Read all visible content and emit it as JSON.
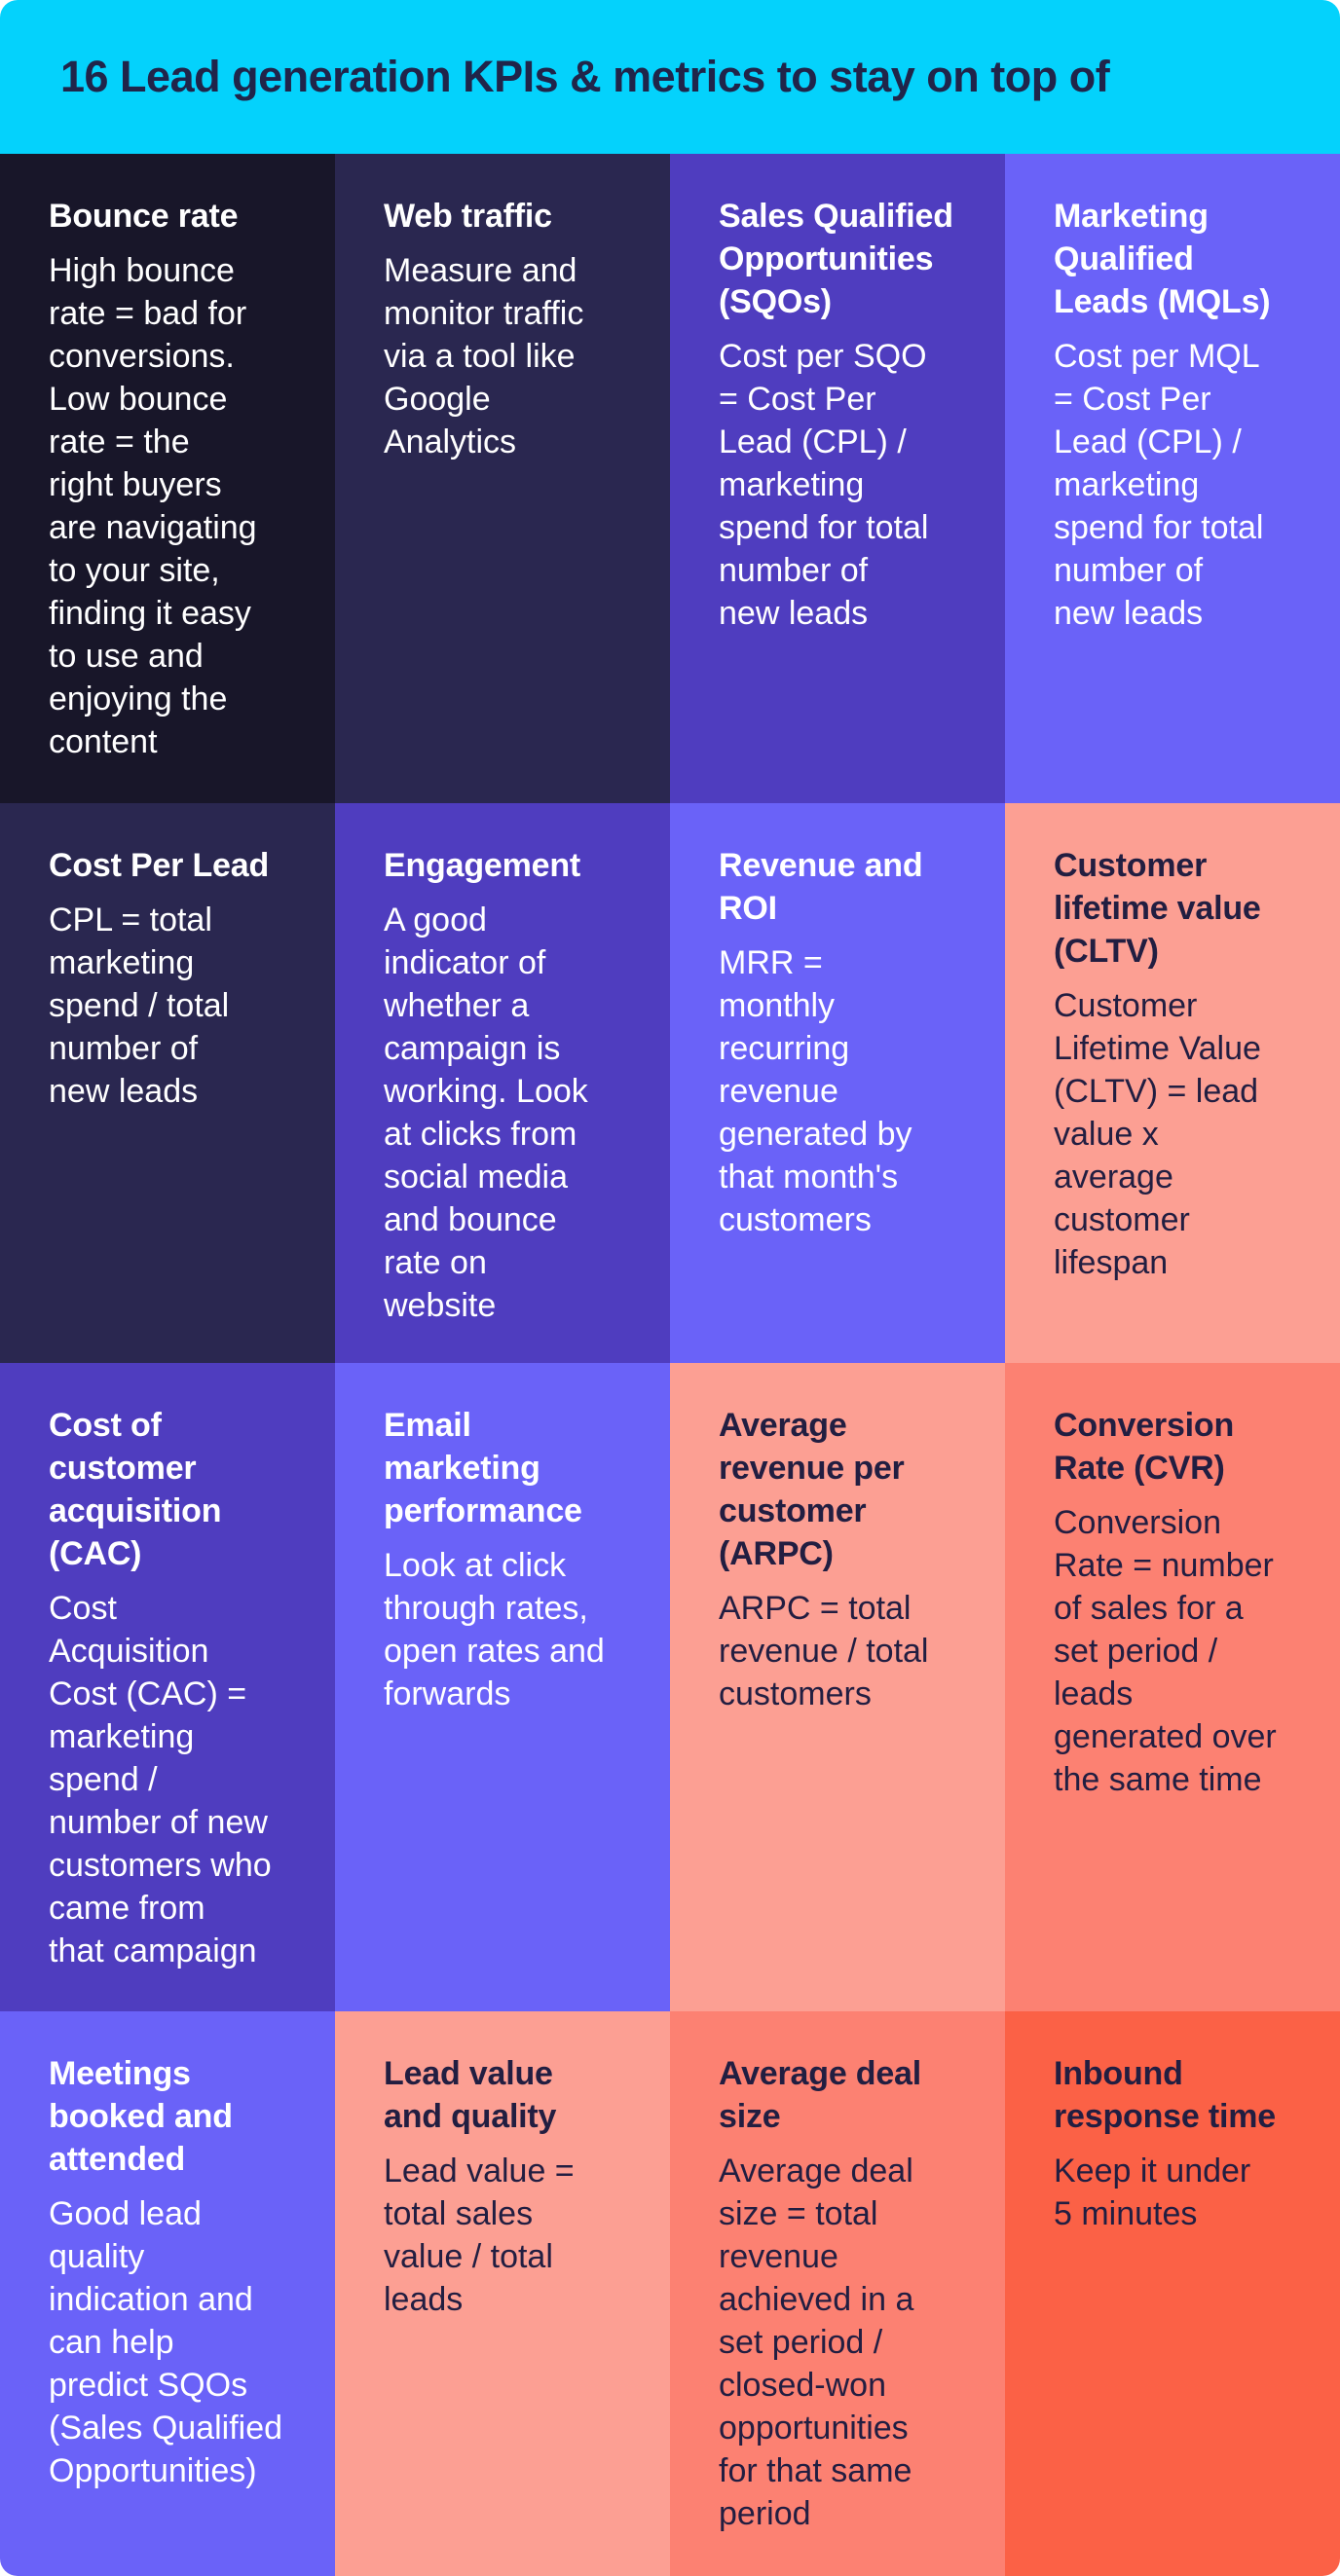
{
  "header": {
    "title": "16 Lead generation KPIs & metrics to stay on top of",
    "bg": "#04d2fc",
    "text_color": "#20254a"
  },
  "grid": {
    "cells": [
      {
        "id": "bounce-rate",
        "title": "Bounce rate",
        "body": "High bounce\nrate = bad for\nconversions.\nLow bounce\nrate =  the\nright buyers\nare navigating\nto your site,\nfinding it easy\nto use and\nenjoying the\ncontent",
        "bg": "#181629",
        "text_color": "#ffffff"
      },
      {
        "id": "web-traffic",
        "title": "Web traffic",
        "body": "Measure and\nmonitor traffic\nvia a tool like\nGoogle\nAnalytics",
        "bg": "#2a2750",
        "text_color": "#ffffff"
      },
      {
        "id": "sqos",
        "title": "Sales Qualified\nOpportunities\n(SQOs)",
        "body": "Cost per SQO\n= Cost Per\nLead (CPL) /\nmarketing\nspend for total\nnumber of\nnew leads",
        "bg": "#4f3dbf",
        "text_color": "#ffffff"
      },
      {
        "id": "mqls",
        "title": "Marketing\nQualified\nLeads (MQLs)",
        "body": "Cost per MQL\n= Cost Per\nLead (CPL) /\nmarketing\nspend for total\nnumber of\nnew leads",
        "bg": "#6a62f8",
        "text_color": "#ffffff"
      },
      {
        "id": "cost-per-lead",
        "title": "Cost Per Lead",
        "body": "CPL = total\nmarketing\nspend /  total\nnumber of\nnew leads",
        "bg": "#2a2750",
        "text_color": "#ffffff"
      },
      {
        "id": "engagement",
        "title": "Engagement",
        "body": "A good\nindicator of\nwhether a\ncampaign is\nworking. Look\nat clicks from\nsocial media\nand bounce\nrate on\nwebsite",
        "bg": "#4f3dbf",
        "text_color": "#ffffff"
      },
      {
        "id": "revenue-roi",
        "title": "Revenue and\nROI",
        "body": "MRR =\nmonthly\nrecurring\nrevenue\ngenerated by\nthat month's\ncustomers",
        "bg": "#6a62f8",
        "text_color": "#ffffff"
      },
      {
        "id": "cltv",
        "title": "Customer\nlifetime value\n(CLTV)",
        "body": "Customer\nLifetime Value\n(CLTV) = lead\nvalue x\naverage\ncustomer\nlifespan",
        "bg": "#fc9f93",
        "text_color": "#221e41"
      },
      {
        "id": "cac",
        "title": "Cost of\ncustomer\nacquisition\n(CAC)",
        "body": "Cost\nAcquisition\nCost (CAC) =\nmarketing\nspend /\nnumber of new\ncustomers who\ncame from\nthat campaign",
        "bg": "#4f3dbf",
        "text_color": "#ffffff"
      },
      {
        "id": "email-marketing",
        "title": "Email\nmarketing\nperformance",
        "body": "Look at click\nthrough rates,\nopen rates and\nforwards",
        "bg": "#6a62f8",
        "text_color": "#ffffff"
      },
      {
        "id": "arpc",
        "title": "Average\nrevenue per\ncustomer\n(ARPC)",
        "body": "ARPC = total\nrevenue / total\ncustomers",
        "bg": "#fc9f93",
        "text_color": "#221e41"
      },
      {
        "id": "cvr",
        "title": "Conversion\nRate (CVR)",
        "body": "Conversion\nRate = number\nof sales for a\nset period /\nleads\ngenerated over\nthe same time",
        "bg": "#fc8172",
        "text_color": "#221e41"
      },
      {
        "id": "meetings",
        "title": "Meetings\nbooked and\nattended",
        "body": "Good lead\nquality\nindication and\ncan help\npredict SQOs\n(Sales Qualified\nOpportunities)",
        "bg": "#6a62f8",
        "text_color": "#ffffff"
      },
      {
        "id": "lead-value",
        "title": "Lead value\nand quality",
        "body": "Lead value =\ntotal sales\nvalue / total\nleads",
        "bg": "#fc9f93",
        "text_color": "#221e41"
      },
      {
        "id": "avg-deal-size",
        "title": "Average deal\nsize",
        "body": "Average deal\nsize = total\nrevenue\nachieved in a\nset period /\nclosed-won\nopportunities\nfor that same\nperiod",
        "bg": "#fc8172",
        "text_color": "#221e41"
      },
      {
        "id": "inbound-response",
        "title": "Inbound\nresponse time",
        "body": "Keep it under\n5 minutes",
        "bg": "#fb6146",
        "text_color": "#221e41"
      }
    ]
  }
}
